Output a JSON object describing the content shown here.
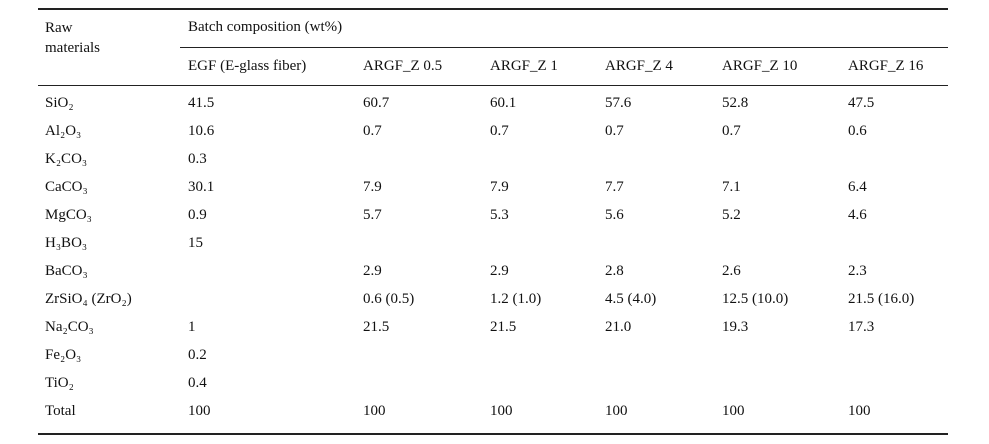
{
  "table": {
    "header": {
      "raw_materials": "Raw materials",
      "batch_composition": "Batch composition (wt%)",
      "columns": [
        "EGF (E-glass fiber)",
        "ARGF_Z 0.5",
        "ARGF_Z 1",
        "ARGF_Z 4",
        "ARGF_Z 10",
        "ARGF_Z 16"
      ]
    },
    "rows": [
      [
        "SiO₂",
        "41.5",
        "60.7",
        "60.1",
        "57.6",
        "52.8",
        "47.5"
      ],
      [
        "Al₂O₃",
        "10.6",
        "0.7",
        "0.7",
        "0.7",
        "0.7",
        "0.6"
      ],
      [
        "K₂CO₃",
        "0.3",
        null,
        null,
        null,
        null,
        null
      ],
      [
        "CaCO₃",
        "30.1",
        "7.9",
        "7.9",
        "7.7",
        "7.1",
        "6.4"
      ],
      [
        "MgCO₃",
        "0.9",
        "5.7",
        "5.3",
        "5.6",
        "5.2",
        "4.6"
      ],
      [
        "H₃BO₃",
        "15",
        null,
        null,
        null,
        null,
        null
      ],
      [
        "BaCO₃",
        null,
        "2.9",
        "2.9",
        "2.8",
        "2.6",
        "2.3"
      ],
      [
        "ZrSiO₄ (ZrO₂)",
        null,
        "0.6 (0.5)",
        "1.2 (1.0)",
        "4.5 (4.0)",
        "12.5 (10.0)",
        "21.5 (16.0)"
      ],
      [
        "Na₂CO₃",
        "1",
        "21.5",
        "21.5",
        "21.0",
        "19.3",
        "17.3"
      ],
      [
        "Fe₂O₃",
        "0.2",
        null,
        null,
        null,
        null,
        null
      ],
      [
        "TiO₂",
        "0.4",
        null,
        null,
        null,
        null,
        null
      ],
      [
        "Total",
        "100",
        "100",
        "100",
        "100",
        "100",
        "100"
      ]
    ]
  }
}
